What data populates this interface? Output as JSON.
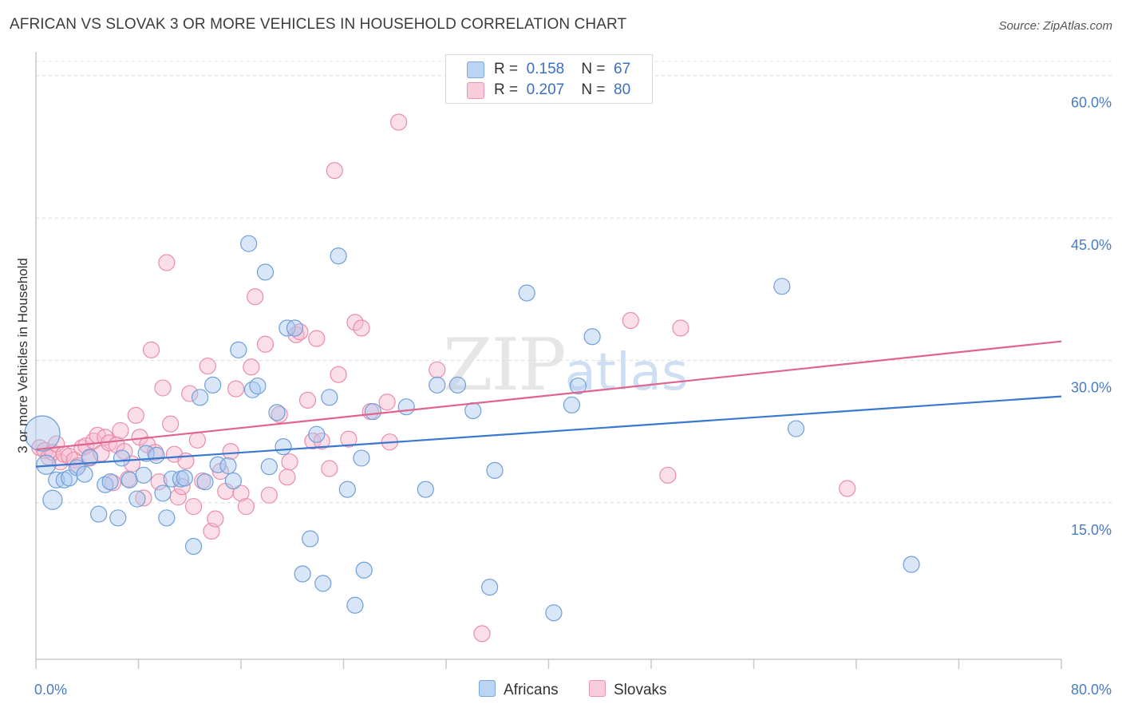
{
  "title": "AFRICAN VS SLOVAK 3 OR MORE VEHICLES IN HOUSEHOLD CORRELATION CHART",
  "source": "Source: ZipAtlas.com",
  "watermark": {
    "zip": "ZIP",
    "atlas": "atlas"
  },
  "legend_top": [
    {
      "r_label": "R =",
      "r_value": "0.158",
      "n_label": "N =",
      "n_value": "67"
    },
    {
      "r_label": "R =",
      "r_value": "0.207",
      "n_label": "N =",
      "n_value": "80"
    }
  ],
  "legend_bottom": [
    {
      "label": "Africans"
    },
    {
      "label": "Slovaks"
    }
  ],
  "colors": {
    "africans_fill": "#a9c8f0",
    "africans_stroke": "#6f9fd8",
    "africans_line": "#3a78d0",
    "slovaks_fill": "#f6b8cb",
    "slovaks_stroke": "#e98cab",
    "slovaks_line": "#e0648f",
    "axis_tick": "#4a7cc4"
  },
  "chart_data": {
    "type": "scatter",
    "title": "AFRICAN VS SLOVAK 3 OR MORE VEHICLES IN HOUSEHOLD CORRELATION CHART",
    "xlabel": "",
    "ylabel": "3 or more Vehicles in Household",
    "xlim": [
      0,
      80
    ],
    "ylim": [
      -1.5,
      62.5
    ],
    "x_tick_labels": [
      "0.0%",
      "80.0%"
    ],
    "y_ticks": [
      15,
      30,
      45,
      60
    ],
    "y_tick_labels": [
      "15.0%",
      "30.0%",
      "45.0%",
      "60.0%"
    ],
    "grid": true,
    "legend_position": "top-center",
    "series": [
      {
        "name": "Africans",
        "r": 0.158,
        "n": 67,
        "trend": {
          "x": [
            0,
            80
          ],
          "y": [
            18.8,
            26.2
          ]
        },
        "points": [
          [
            0.5,
            22.3,
            22
          ],
          [
            0.8,
            19.0,
            12
          ],
          [
            1.3,
            15.3,
            12
          ],
          [
            1.6,
            17.4,
            10
          ],
          [
            2.2,
            17.4,
            10
          ],
          [
            2.6,
            17.6,
            10
          ],
          [
            3.2,
            18.7,
            10
          ],
          [
            3.8,
            18.0,
            10
          ],
          [
            4.2,
            19.8,
            10
          ],
          [
            4.9,
            13.8,
            10
          ],
          [
            5.4,
            16.9,
            10
          ],
          [
            5.8,
            17.2,
            10
          ],
          [
            6.4,
            13.4,
            10
          ],
          [
            6.7,
            19.7,
            10
          ],
          [
            7.3,
            17.4,
            10
          ],
          [
            7.9,
            15.4,
            10
          ],
          [
            8.4,
            17.9,
            10
          ],
          [
            8.6,
            20.2,
            10
          ],
          [
            9.4,
            20.0,
            10
          ],
          [
            9.9,
            16.0,
            10
          ],
          [
            10.2,
            13.4,
            10
          ],
          [
            10.6,
            17.5,
            10
          ],
          [
            11.3,
            17.5,
            10
          ],
          [
            11.6,
            17.6,
            10
          ],
          [
            12.3,
            10.4,
            10
          ],
          [
            12.8,
            26.1,
            10
          ],
          [
            13.2,
            17.2,
            10
          ],
          [
            13.8,
            27.4,
            10
          ],
          [
            14.2,
            19.0,
            10
          ],
          [
            15.0,
            18.9,
            10
          ],
          [
            15.4,
            17.3,
            10
          ],
          [
            15.8,
            31.1,
            10
          ],
          [
            16.6,
            42.3,
            10
          ],
          [
            16.9,
            26.9,
            10
          ],
          [
            17.3,
            27.3,
            10
          ],
          [
            17.9,
            39.3,
            10
          ],
          [
            18.2,
            18.8,
            10
          ],
          [
            18.8,
            24.5,
            10
          ],
          [
            19.3,
            20.9,
            10
          ],
          [
            19.6,
            33.4,
            10
          ],
          [
            20.2,
            33.4,
            10
          ],
          [
            20.8,
            7.5,
            10
          ],
          [
            21.4,
            11.2,
            10
          ],
          [
            21.9,
            22.2,
            10
          ],
          [
            22.4,
            6.5,
            10
          ],
          [
            22.9,
            26.1,
            10
          ],
          [
            23.6,
            41.0,
            10
          ],
          [
            24.3,
            16.4,
            10
          ],
          [
            24.9,
            4.2,
            10
          ],
          [
            25.4,
            19.7,
            10
          ],
          [
            25.6,
            7.9,
            10
          ],
          [
            26.3,
            24.6,
            10
          ],
          [
            28.9,
            25.1,
            10
          ],
          [
            30.4,
            16.4,
            10
          ],
          [
            31.3,
            27.4,
            10
          ],
          [
            32.9,
            27.4,
            10
          ],
          [
            34.1,
            24.7,
            10
          ],
          [
            35.4,
            6.1,
            10
          ],
          [
            35.8,
            18.4,
            10
          ],
          [
            38.3,
            37.1,
            10
          ],
          [
            40.4,
            3.4,
            10
          ],
          [
            41.8,
            25.3,
            10
          ],
          [
            42.3,
            27.3,
            10
          ],
          [
            43.4,
            32.5,
            10
          ],
          [
            58.2,
            37.8,
            10
          ],
          [
            59.3,
            22.8,
            10
          ],
          [
            68.3,
            8.5,
            10
          ]
        ]
      },
      {
        "name": "Slovaks",
        "r": 0.207,
        "n": 80,
        "trend": {
          "x": [
            0,
            80
          ],
          "y": [
            20.6,
            32.0
          ]
        },
        "points": [
          [
            0.3,
            20.8,
            10
          ],
          [
            0.7,
            20.5,
            10
          ],
          [
            1.0,
            19.8,
            10
          ],
          [
            1.3,
            20.3,
            10
          ],
          [
            1.6,
            21.2,
            10
          ],
          [
            1.9,
            19.3,
            10
          ],
          [
            2.2,
            20.1,
            10
          ],
          [
            2.6,
            19.9,
            10
          ],
          [
            3.0,
            19.5,
            10
          ],
          [
            3.3,
            18.9,
            10
          ],
          [
            3.6,
            20.8,
            10
          ],
          [
            3.9,
            21.0,
            10
          ],
          [
            4.2,
            19.7,
            10
          ],
          [
            4.5,
            21.5,
            10
          ],
          [
            4.8,
            22.1,
            10
          ],
          [
            5.1,
            20.2,
            10
          ],
          [
            5.4,
            21.9,
            10
          ],
          [
            5.7,
            21.3,
            10
          ],
          [
            6.0,
            17.1,
            10
          ],
          [
            6.3,
            21.1,
            10
          ],
          [
            6.6,
            22.6,
            10
          ],
          [
            6.9,
            20.4,
            10
          ],
          [
            7.2,
            17.5,
            10
          ],
          [
            7.5,
            19.1,
            10
          ],
          [
            7.8,
            24.2,
            10
          ],
          [
            8.1,
            21.9,
            10
          ],
          [
            8.4,
            15.5,
            10
          ],
          [
            8.7,
            21.1,
            10
          ],
          [
            9.0,
            31.1,
            10
          ],
          [
            9.3,
            20.3,
            10
          ],
          [
            9.6,
            17.2,
            10
          ],
          [
            9.9,
            27.1,
            10
          ],
          [
            10.2,
            40.3,
            10
          ],
          [
            10.5,
            23.3,
            10
          ],
          [
            10.8,
            20.1,
            10
          ],
          [
            11.1,
            15.6,
            10
          ],
          [
            11.4,
            16.7,
            10
          ],
          [
            11.7,
            19.4,
            10
          ],
          [
            12.0,
            26.5,
            10
          ],
          [
            12.3,
            14.6,
            10
          ],
          [
            12.6,
            21.6,
            10
          ],
          [
            13.0,
            17.3,
            10
          ],
          [
            13.4,
            29.4,
            10
          ],
          [
            13.7,
            12.0,
            10
          ],
          [
            14.0,
            13.3,
            10
          ],
          [
            14.4,
            18.3,
            10
          ],
          [
            14.8,
            16.2,
            10
          ],
          [
            15.2,
            20.4,
            10
          ],
          [
            15.6,
            27.0,
            10
          ],
          [
            16.0,
            16.0,
            10
          ],
          [
            16.4,
            14.6,
            10
          ],
          [
            16.8,
            29.3,
            10
          ],
          [
            17.1,
            36.7,
            10
          ],
          [
            17.9,
            31.7,
            10
          ],
          [
            18.2,
            15.8,
            10
          ],
          [
            19.0,
            24.3,
            10
          ],
          [
            19.6,
            17.7,
            10
          ],
          [
            19.8,
            19.3,
            10
          ],
          [
            20.3,
            32.7,
            10
          ],
          [
            20.6,
            33.0,
            10
          ],
          [
            21.2,
            25.8,
            10
          ],
          [
            21.6,
            21.5,
            10
          ],
          [
            21.9,
            32.3,
            10
          ],
          [
            22.3,
            21.5,
            10
          ],
          [
            22.9,
            18.6,
            10
          ],
          [
            23.3,
            50.0,
            10
          ],
          [
            23.6,
            28.5,
            10
          ],
          [
            24.4,
            21.7,
            10
          ],
          [
            24.9,
            34.0,
            10
          ],
          [
            25.4,
            33.4,
            10
          ],
          [
            26.1,
            24.6,
            10
          ],
          [
            27.4,
            25.6,
            10
          ],
          [
            27.6,
            21.4,
            10
          ],
          [
            28.3,
            55.1,
            10
          ],
          [
            31.3,
            29.0,
            10
          ],
          [
            34.8,
            1.2,
            10
          ],
          [
            46.4,
            34.2,
            10
          ],
          [
            49.3,
            17.9,
            10
          ],
          [
            50.3,
            33.4,
            10
          ],
          [
            63.3,
            16.5,
            10
          ]
        ]
      }
    ]
  }
}
